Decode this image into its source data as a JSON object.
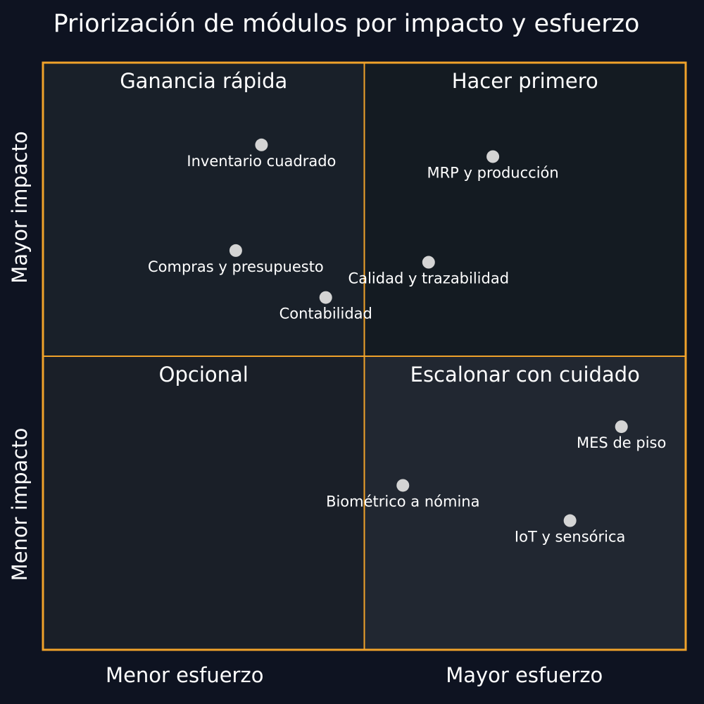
{
  "title": "Priorización de módulos por impacto y esfuerzo",
  "colors": {
    "background": "#0e1321",
    "border": "#f0a22a",
    "point": "#d4d4d4",
    "text": "#ffffff",
    "quadrant_fills": {
      "top-left": "#192029",
      "top-right": "#141b22",
      "bottom-left": "#1a1f28",
      "bottom-right": "#212731"
    }
  },
  "chart_data": {
    "type": "scatter",
    "title": "Priorización de módulos por impacto y esfuerzo",
    "x_axis": {
      "labels": [
        "Menor esfuerzo",
        "Mayor esfuerzo"
      ],
      "range": [
        0,
        1
      ]
    },
    "y_axis": {
      "labels": [
        "Menor impacto",
        "Mayor impacto"
      ],
      "range": [
        0,
        1
      ]
    },
    "quadrants": [
      {
        "position": "top-left",
        "label": "Ganancia rápida"
      },
      {
        "position": "top-right",
        "label": "Hacer primero"
      },
      {
        "position": "bottom-left",
        "label": "Opcional"
      },
      {
        "position": "bottom-right",
        "label": "Escalonar con cuidado"
      }
    ],
    "points": [
      {
        "label": "Inventario cuadrado",
        "x": 0.34,
        "y": 0.86
      },
      {
        "label": "MRP y producción",
        "x": 0.7,
        "y": 0.84
      },
      {
        "label": "Compras y presupuesto",
        "x": 0.3,
        "y": 0.68
      },
      {
        "label": "Calidad y trazabilidad",
        "x": 0.6,
        "y": 0.66
      },
      {
        "label": "Contabilidad",
        "x": 0.44,
        "y": 0.6
      },
      {
        "label": "MES de piso",
        "x": 0.9,
        "y": 0.38
      },
      {
        "label": "Biométrico a nómina",
        "x": 0.56,
        "y": 0.28
      },
      {
        "label": "IoT y sensórica",
        "x": 0.82,
        "y": 0.22
      }
    ],
    "grid": false,
    "legend": "none"
  }
}
